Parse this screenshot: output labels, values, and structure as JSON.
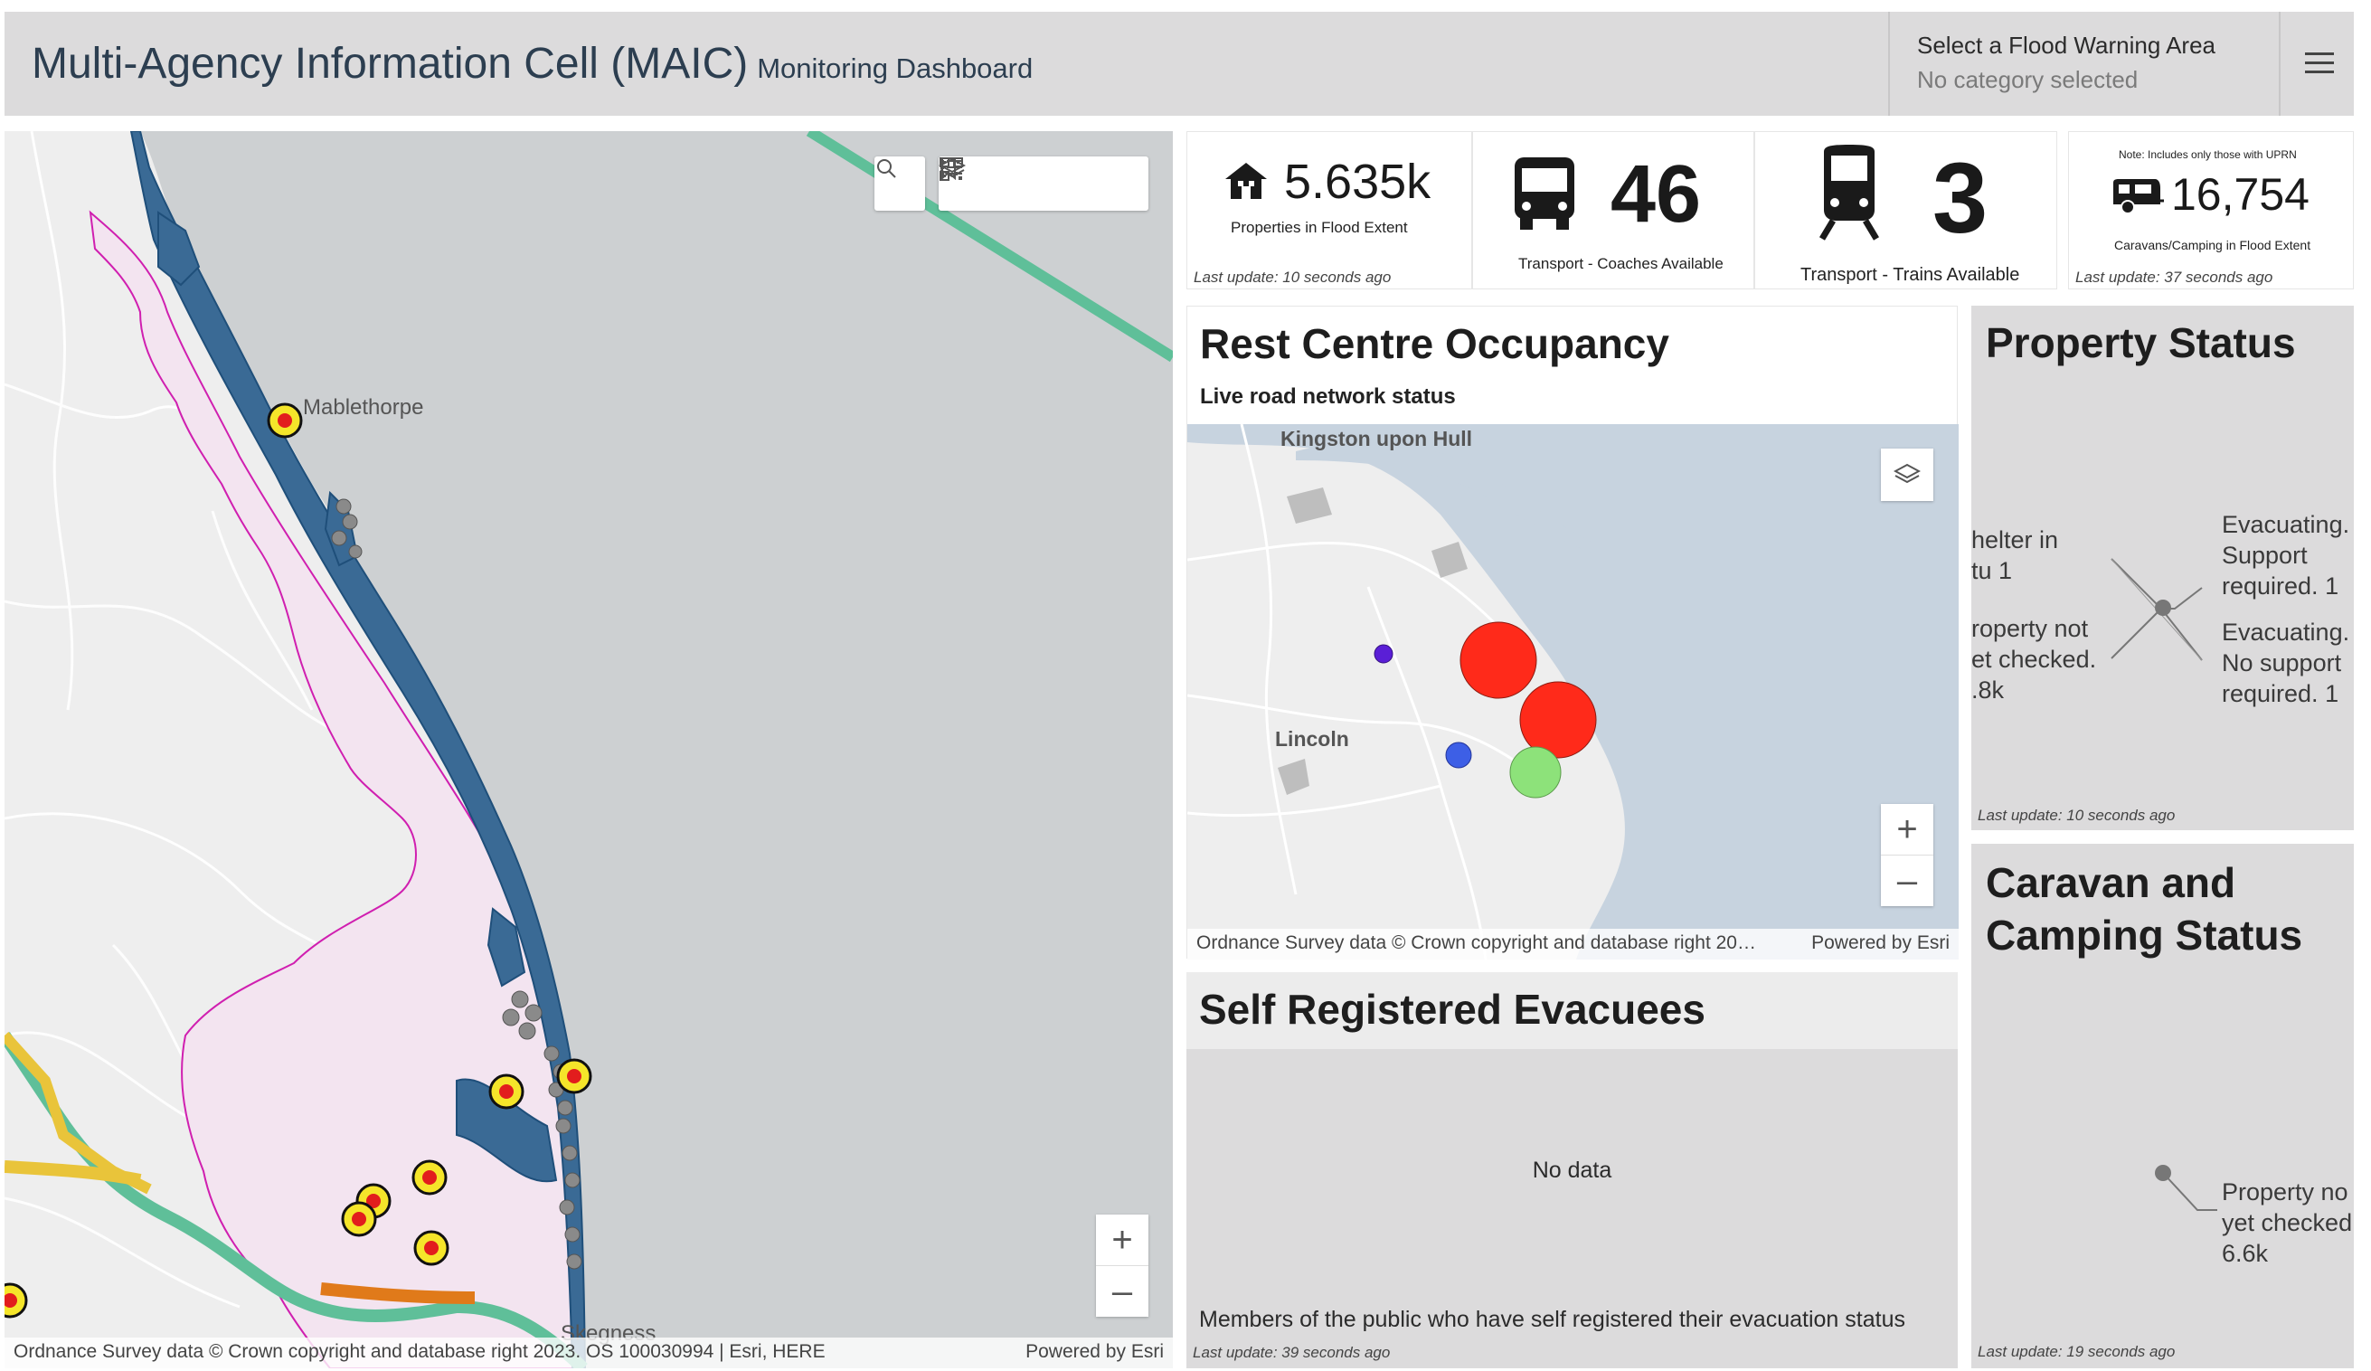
{
  "header": {
    "title": "Multi-Agency Information Cell (MAIC)",
    "subtitle": "Monitoring Dashboard",
    "flood_area_label": "Select a Flood Warning Area",
    "flood_area_value": "No category selected",
    "menu_icon": "hamburger-menu-icon"
  },
  "left_map": {
    "place_labels": [
      "Mablethorpe",
      "Skegness"
    ],
    "toolbar_icons": [
      "search-icon",
      "bookmark-icon",
      "legend-list-icon",
      "layers-icon",
      "qr-code-icon"
    ],
    "zoom_in": "+",
    "zoom_out": "–",
    "attribution": "Ordnance Survey data © Crown copyright and database right 2023. OS 100030994 | Esri, HERE",
    "powered_by": "Powered by Esri"
  },
  "kpis": [
    {
      "icon": "house-icon",
      "value": "5.635k",
      "label": "Properties in Flood Extent",
      "last_update": "Last update: 10 seconds ago"
    },
    {
      "icon": "bus-icon",
      "value": "46",
      "label": "Transport - Coaches Available"
    },
    {
      "icon": "train-icon",
      "value": "3",
      "label": "Transport - Trains Available"
    },
    {
      "icon": "caravan-icon",
      "note": "Note: Includes only those with UPRN",
      "value": "16,754",
      "label": "Caravans/Camping in Flood Extent",
      "last_update": "Last update: 37 seconds ago"
    }
  ],
  "rest_centre": {
    "title": "Rest Centre Occupancy",
    "subtitle": "Live road network status",
    "place_labels": [
      "Kingston upon Hull",
      "Lincoln"
    ],
    "layers_icon": "layers-icon",
    "zoom_in": "+",
    "zoom_out": "–",
    "attribution": "Ordnance Survey data © Crown copyright and database right 20…",
    "powered_by": "Powered by Esri",
    "colors": {
      "high": "#ff2a1a",
      "low": "#8de27a",
      "blue": "#3d5fe6",
      "purple": "#5a1fd6"
    }
  },
  "self_registered": {
    "title": "Self Registered Evacuees",
    "no_data": "No data",
    "description": "Members of the public who have self registered their evacuation status",
    "last_update": "Last update: 39 seconds ago"
  },
  "property_status": {
    "title": "Property Status",
    "labels": {
      "shelter": "helter in\ntu 1",
      "not_checked": "roperty not\net checked.\n.8k",
      "evac_support": "Evacuating.\nSupport\nrequired. 1",
      "evac_no_support": "Evacuating.\nNo support\nrequired. 1"
    },
    "last_update": "Last update: 10 seconds ago"
  },
  "caravan_status": {
    "title_line1": "Caravan and",
    "title_line2": "Camping Status",
    "label": "Property no\nyet checked\n6.6k",
    "last_update": "Last update: 19 seconds ago"
  }
}
